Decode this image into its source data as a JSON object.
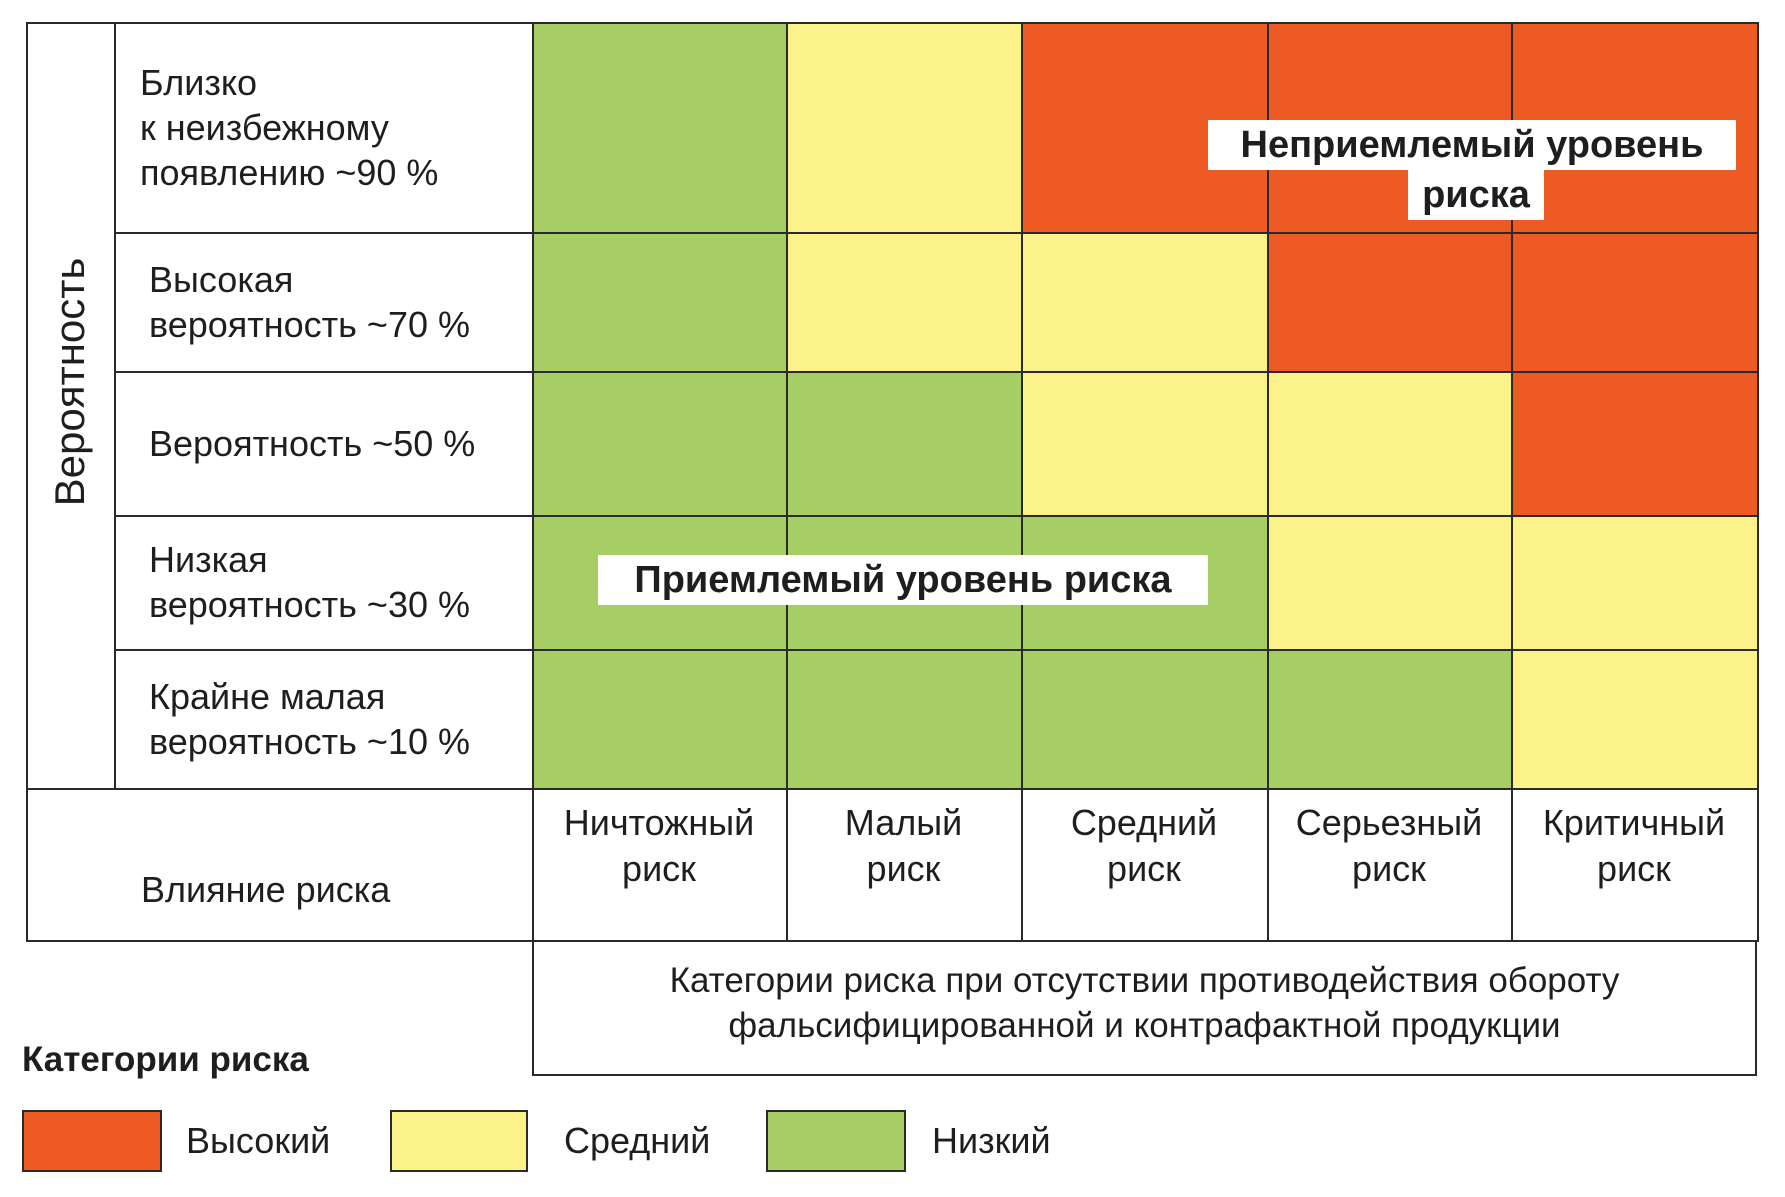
{
  "colors": {
    "high": "#EE5A24",
    "medium": "#FBF38A",
    "low": "#A6CE65"
  },
  "axis_title": "Вероятность",
  "impact_title": "Влияние риска",
  "rows": [
    {
      "lines": [
        "Близко",
        "к неизбежному",
        "появлению ~90 %"
      ],
      "cells": [
        "low",
        "medium",
        "high",
        "high",
        "high"
      ]
    },
    {
      "lines": [
        "Высокая",
        "вероятность ~70 %"
      ],
      "cells": [
        "low",
        "medium",
        "medium",
        "high",
        "high"
      ]
    },
    {
      "lines": [
        "Вероятность ~50 %"
      ],
      "cells": [
        "low",
        "low",
        "medium",
        "medium",
        "high"
      ]
    },
    {
      "lines": [
        "Низкая",
        "вероятность ~30 %"
      ],
      "cells": [
        "low",
        "low",
        "low",
        "medium",
        "medium"
      ]
    },
    {
      "lines": [
        "Крайне малая",
        "вероятность ~10 %"
      ],
      "cells": [
        "low",
        "low",
        "low",
        "low",
        "medium"
      ]
    }
  ],
  "columns": [
    [
      "Ничтожный",
      "риск"
    ],
    [
      "Малый",
      "риск"
    ],
    [
      "Средний",
      "риск"
    ],
    [
      "Серьезный",
      "риск"
    ],
    [
      "Критичный",
      "риск"
    ]
  ],
  "zones": {
    "unacceptable": [
      "Неприемлемый уровень",
      "риска"
    ],
    "acceptable": "Приемлемый уровень риска"
  },
  "caption": [
    "Категории риска при отсутствии противодействия обороту",
    "фальсифицированной и контрафактной продукции"
  ],
  "legend": {
    "title": "Категории риска",
    "items": [
      {
        "key": "high",
        "label": "Высокий"
      },
      {
        "key": "medium",
        "label": "Средний"
      },
      {
        "key": "low",
        "label": "Низкий"
      }
    ]
  }
}
